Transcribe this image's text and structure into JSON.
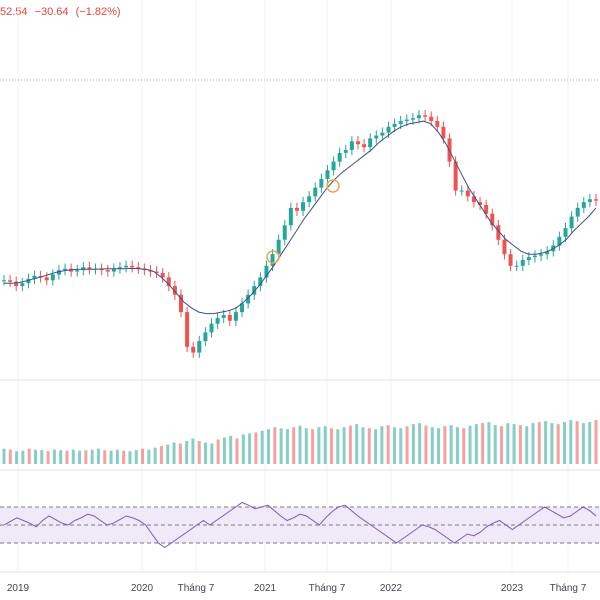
{
  "header": {
    "last_value": "52.54",
    "change": "−30.64",
    "change_pct": "(−1.82%)"
  },
  "colors": {
    "up": "#26a69a",
    "down": "#ef5350",
    "ma": "#3b4f8c",
    "rsi": "#7e57c2",
    "rsi_band": "#efe9f8",
    "marker": "#f0a64a"
  },
  "chart_data": {
    "type": "candlestick",
    "x_tick_labels": [
      "2019",
      "2020",
      "Tháng 7",
      "2021",
      "Tháng 7",
      "2022",
      "2023",
      "Tháng 7"
    ],
    "series": [
      {
        "name": "",
        "kind": "price_close",
        "values": [
          1010,
          1005,
          990,
          1000,
          1015,
          1025,
          1020,
          1010,
          1030,
          1045,
          1050,
          1040,
          1045,
          1055,
          1048,
          1050,
          1045,
          1040,
          1050,
          1055,
          1060,
          1055,
          1050,
          1045,
          1040,
          1035,
          1020,
          990,
          960,
          900,
          780,
          760,
          800,
          830,
          860,
          880,
          890,
          870,
          900,
          930,
          960,
          990,
          1020,
          1060,
          1100,
          1150,
          1200,
          1260,
          1250,
          1280,
          1300,
          1330,
          1360,
          1390,
          1420,
          1450,
          1460,
          1490,
          1480,
          1470,
          1500,
          1510,
          1520,
          1540,
          1550,
          1560,
          1565,
          1570,
          1580,
          1575,
          1560,
          1540,
          1500,
          1420,
          1320,
          1320,
          1300,
          1280,
          1270,
          1240,
          1200,
          1150,
          1100,
          1060,
          1060,
          1080,
          1090,
          1095,
          1100,
          1110,
          1130,
          1160,
          1190,
          1230,
          1260,
          1280,
          1290,
          1285
        ],
        "y_range": [
          700,
          1650
        ]
      },
      {
        "name": "",
        "kind": "moving_average",
        "values": [
          1000,
          1000,
          1002,
          1008,
          1015,
          1022,
          1030,
          1038,
          1043,
          1046,
          1048,
          1048,
          1048,
          1049,
          1050,
          1050,
          1050,
          1051,
          1050,
          1048,
          1040,
          1020,
          995,
          965,
          935,
          915,
          900,
          895,
          895,
          900,
          905,
          915,
          935,
          960,
          990,
          1025,
          1060,
          1100,
          1140,
          1180,
          1220,
          1255,
          1290,
          1325,
          1355,
          1380,
          1400,
          1420,
          1440,
          1460,
          1485,
          1505,
          1525,
          1540,
          1550,
          1555,
          1560,
          1550,
          1520,
          1480,
          1430,
          1380,
          1330,
          1290,
          1250,
          1210,
          1180,
          1150,
          1130,
          1110,
          1100,
          1100,
          1105,
          1115,
          1130,
          1150,
          1180,
          1205,
          1230,
          1260
        ]
      },
      {
        "name": "",
        "kind": "volume",
        "values": [
          30,
          28,
          25,
          26,
          30,
          28,
          27,
          25,
          28,
          27,
          26,
          28,
          26,
          27,
          28,
          30,
          27,
          26,
          28,
          26,
          25,
          27,
          30,
          28,
          32,
          35,
          38,
          42,
          40,
          45,
          50,
          45,
          42,
          40,
          48,
          52,
          55,
          50,
          58,
          60,
          62,
          65,
          68,
          72,
          70,
          68,
          72,
          75,
          70,
          68,
          72,
          74,
          70,
          68,
          72,
          75,
          78,
          72,
          70,
          68,
          74,
          76,
          72,
          70,
          74,
          78,
          80,
          75,
          72,
          70,
          74,
          76,
          72,
          70,
          75,
          78,
          80,
          82,
          76,
          74,
          80,
          78,
          76,
          74,
          80,
          82,
          84,
          80,
          78,
          82,
          86,
          84,
          80,
          82,
          86
        ]
      },
      {
        "name": "",
        "kind": "rsi",
        "values": [
          50,
          54,
          58,
          55,
          52,
          48,
          55,
          60,
          56,
          52,
          50,
          55,
          58,
          62,
          60,
          55,
          50,
          52,
          56,
          60,
          58,
          55,
          50,
          40,
          30,
          25,
          30,
          35,
          40,
          45,
          50,
          55,
          50,
          55,
          60,
          65,
          70,
          75,
          72,
          68,
          70,
          72,
          66,
          60,
          55,
          58,
          62,
          60,
          55,
          50,
          58,
          65,
          70,
          72,
          66,
          60,
          55,
          50,
          45,
          40,
          35,
          30,
          35,
          40,
          45,
          50,
          48,
          45,
          40,
          35,
          30,
          35,
          40,
          38,
          42,
          48,
          52,
          55,
          50,
          45,
          50,
          55,
          60,
          65,
          70,
          66,
          62,
          58,
          60,
          65,
          70,
          66,
          60
        ]
      },
      {
        "name": "",
        "kind": "rsi_levels",
        "values": [
          30,
          50,
          70
        ]
      }
    ]
  }
}
